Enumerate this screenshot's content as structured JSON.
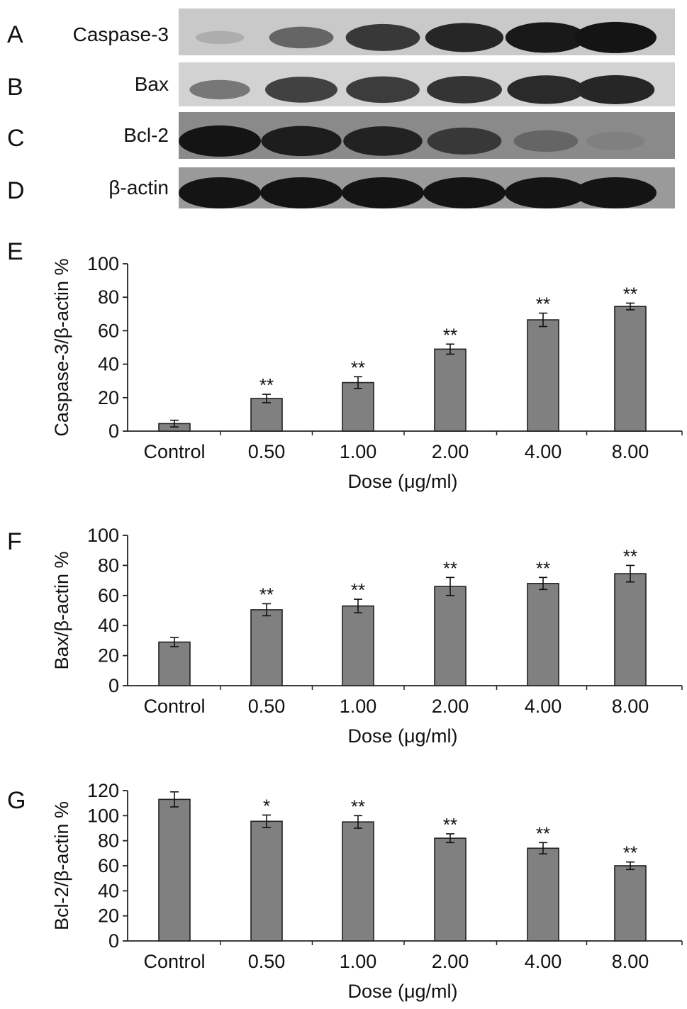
{
  "blots": [
    {
      "letter": "A",
      "label": "Caspase-3",
      "band_intensity": [
        0.15,
        0.55,
        0.8,
        0.9,
        0.97,
        1.0
      ],
      "background": "#c9c9c9"
    },
    {
      "letter": "B",
      "label": "Bax",
      "band_intensity": [
        0.45,
        0.75,
        0.78,
        0.82,
        0.88,
        0.9
      ],
      "background": "#d2d2d2"
    },
    {
      "letter": "C",
      "label": "Bcl-2",
      "band_intensity": [
        1.0,
        0.95,
        0.92,
        0.8,
        0.55,
        0.4
      ],
      "background": "#8a8a8a"
    },
    {
      "letter": "D",
      "label": "β-actin",
      "band_intensity": [
        1.0,
        1.0,
        1.0,
        1.0,
        1.0,
        1.0
      ],
      "background": "#9a9a9a"
    }
  ],
  "chart_data": [
    {
      "letter": "E",
      "type": "bar",
      "categories": [
        "Control",
        "0.50",
        "1.00",
        "2.00",
        "4.00",
        "8.00"
      ],
      "values": [
        4.5,
        19.5,
        29,
        49,
        66.5,
        74.5
      ],
      "errors": [
        2,
        2.5,
        3.5,
        3,
        4,
        2
      ],
      "significance": [
        "",
        "**",
        "**",
        "**",
        "**",
        "**"
      ],
      "xlabel": "Dose (μg/ml)",
      "ylabel": "Caspase-3/β-actin %",
      "ylim": [
        0,
        100
      ],
      "yticks": [
        "0",
        "20",
        "40",
        "60",
        "80",
        "100"
      ],
      "bar_color": "#808080"
    },
    {
      "letter": "F",
      "type": "bar",
      "categories": [
        "Control",
        "0.50",
        "1.00",
        "2.00",
        "4.00",
        "8.00"
      ],
      "values": [
        29,
        50.5,
        53,
        66,
        68,
        74.5
      ],
      "errors": [
        3,
        4,
        4.5,
        6,
        4,
        5.5
      ],
      "significance": [
        "",
        "**",
        "**",
        "**",
        "**",
        "**"
      ],
      "xlabel": "Dose (μg/ml)",
      "ylabel": "Bax/β-actin %",
      "ylim": [
        0,
        100
      ],
      "yticks": [
        "0",
        "20",
        "40",
        "60",
        "80",
        "100"
      ],
      "bar_color": "#808080"
    },
    {
      "letter": "G",
      "type": "bar",
      "categories": [
        "Control",
        "0.50",
        "1.00",
        "2.00",
        "4.00",
        "8.00"
      ],
      "values": [
        113,
        95.5,
        95,
        82,
        74,
        60
      ],
      "errors": [
        6,
        5,
        5,
        3.5,
        4.5,
        3
      ],
      "significance": [
        "",
        "*",
        "**",
        "**",
        "**",
        "**"
      ],
      "xlabel": "Dose (μg/ml)",
      "ylabel": "Bcl-2/β-actin %",
      "ylim": [
        0,
        120
      ],
      "yticks": [
        "0",
        "20",
        "40",
        "60",
        "80",
        "100",
        "120"
      ],
      "bar_color": "#808080"
    }
  ]
}
